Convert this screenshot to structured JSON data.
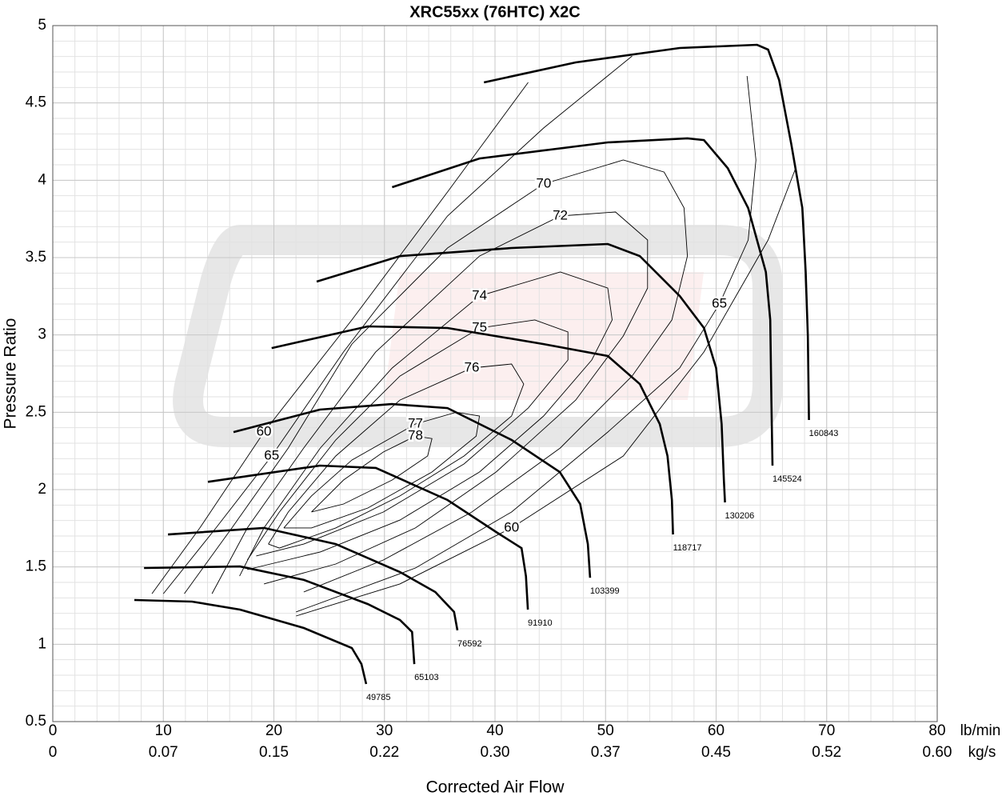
{
  "chart_data": {
    "type": "compressor-map",
    "title": "XRC55xx (76HTC) X2C",
    "x_label": "Corrected Air Flow",
    "y_label": "Pressure Ratio",
    "xunit": "lb/min",
    "x2unit": "kg/s",
    "xlim": [
      0,
      80
    ],
    "xticks": [
      0,
      10,
      20,
      30,
      40,
      50,
      60,
      70,
      80
    ],
    "x2lim": [
      0,
      0.6048
    ],
    "x2ticks": [
      0,
      {
        "value": 0.0756,
        "label": "0.07"
      },
      {
        "value": 0.1512,
        "label": "0.15"
      },
      {
        "value": 0.2268,
        "label": "0.22"
      },
      {
        "value": 0.3024,
        "label": "0.30"
      },
      {
        "value": 0.378,
        "label": "0.37"
      },
      {
        "value": 0.4536,
        "label": "0.45"
      },
      {
        "value": 0.5292,
        "label": "0.52"
      },
      {
        "value": 0.6048,
        "label": "0.60"
      }
    ],
    "ylim": [
      0.5,
      5
    ],
    "yticks": [
      0.5,
      1,
      1.5,
      2,
      2.5,
      3,
      3.5,
      4,
      4.5,
      5
    ],
    "grid": true,
    "minor_grid": true,
    "series": [
      {
        "name": "49785",
        "color": "#000000",
        "x": [
          7.38,
          12.59,
          16.93,
          22.71,
          27.05,
          27.92,
          28.35
        ],
        "values": [
          1.286,
          1.276,
          1.224,
          1.105,
          0.976,
          0.872,
          0.743
        ]
      },
      {
        "name": "65103",
        "color": "#000000",
        "x": [
          8.25,
          16.93,
          22.71,
          28.5,
          31.4,
          32.5,
          32.7
        ],
        "values": [
          1.493,
          1.503,
          1.416,
          1.26,
          1.157,
          1.08,
          0.872
        ]
      },
      {
        "name": "76592",
        "color": "#000000",
        "x": [
          10.42,
          19.1,
          25.6,
          31.4,
          34.6,
          36.3,
          36.6
        ],
        "values": [
          1.71,
          1.752,
          1.648,
          1.467,
          1.338,
          1.209,
          1.09
        ]
      },
      {
        "name": "91910",
        "color": "#000000",
        "x": [
          14.03,
          24.16,
          29.22,
          35.7,
          40.1,
          42.4,
          42.8,
          42.97
        ],
        "values": [
          2.05,
          2.155,
          2.14,
          1.933,
          1.726,
          1.622,
          1.44,
          1.224
        ]
      },
      {
        "name": "103399",
        "color": "#000000",
        "x": [
          16.35,
          24.16,
          30.67,
          35.7,
          41.5,
          45.86,
          47.7,
          48.4,
          48.6
        ],
        "values": [
          2.372,
          2.517,
          2.553,
          2.527,
          2.321,
          2.114,
          1.907,
          1.648,
          1.43
        ]
      },
      {
        "name": "118717",
        "color": "#000000",
        "x": [
          19.8,
          28.5,
          35.7,
          44.4,
          50.2,
          53.1,
          54.9,
          55.6,
          56.0,
          56.1
        ],
        "values": [
          2.915,
          3.055,
          3.045,
          2.941,
          2.864,
          2.683,
          2.424,
          2.217,
          1.933,
          1.71
        ]
      },
      {
        "name": "130206",
        "color": "#000000",
        "x": [
          23.87,
          31.4,
          41.5,
          50.2,
          53.1,
          56.7,
          58.9,
          60.0,
          60.5,
          60.7,
          60.8
        ],
        "values": [
          3.345,
          3.51,
          3.562,
          3.588,
          3.51,
          3.252,
          3.045,
          2.786,
          2.424,
          2.062,
          1.917
        ]
      },
      {
        "name": "145524",
        "color": "#000000",
        "x": [
          30.7,
          38.6,
          50.2,
          57.4,
          58.9,
          61.05,
          62.9,
          64.5,
          64.9,
          65.0,
          65.1
        ],
        "values": [
          3.955,
          4.141,
          4.245,
          4.271,
          4.26,
          4.079,
          3.82,
          3.407,
          3.097,
          2.579,
          2.155
        ]
      },
      {
        "name": "160843",
        "color": "#000000",
        "x": [
          39.0,
          47.3,
          56.7,
          63.7,
          64.7,
          65.7,
          66.8,
          67.8,
          68.1,
          68.3,
          68.4
        ],
        "values": [
          4.633,
          4.762,
          4.855,
          4.876,
          4.845,
          4.648,
          4.234,
          3.821,
          3.407,
          2.993,
          2.45
        ]
      }
    ],
    "contours": [
      {
        "name": "60",
        "x": [
          8.97,
          13.3,
          19.1,
          27.05,
          35.7,
          43.0,
          null,
          22.0,
          31.4,
          41.5,
          51.6,
          58.9,
          64.7,
          67.2
        ],
        "values": [
          1.327,
          1.752,
          2.372,
          3.097,
          3.924,
          4.633,
          null,
          1.183,
          1.39,
          1.752,
          2.217,
          2.89,
          3.614,
          4.079
        ]
      },
      {
        "name": "65",
        "x": [
          10.0,
          14.76,
          19.8,
          26.3,
          35.7,
          44.4,
          52.4,
          null,
          62.8,
          63.6,
          62.9,
          60.3,
          56.7,
          50.2,
          41.5,
          32.8,
          22.0
        ],
        "values": [
          1.327,
          1.752,
          2.217,
          2.89,
          3.769,
          4.338,
          4.803,
          null,
          4.674,
          4.131,
          3.614,
          3.2,
          2.786,
          2.372,
          1.855,
          1.493,
          1.209
        ]
      },
      {
        "name": "70",
        "x": [
          11.9,
          16.2,
          21.3,
          27.05,
          35.7,
          44.4,
          51.6,
          55.3,
          57.1,
          57.4,
          56.0,
          52.4,
          45.9,
          37.9,
          29.9,
          22.7
        ],
        "values": [
          1.327,
          1.752,
          2.269,
          2.941,
          3.562,
          3.976,
          4.131,
          4.053,
          3.821,
          3.51,
          3.097,
          2.734,
          2.269,
          1.855,
          1.545,
          1.338
        ]
      },
      {
        "name": "72",
        "x": [
          14.4,
          17.6,
          22.7,
          29.2,
          38.6,
          45.9,
          50.9,
          53.8,
          53.8,
          51.6,
          47.3,
          40.1,
          32.8,
          25.6,
          19.1
        ],
        "values": [
          1.327,
          1.752,
          2.269,
          2.889,
          3.51,
          3.769,
          3.795,
          3.614,
          3.303,
          2.993,
          2.579,
          2.114,
          1.752,
          1.519,
          1.39
        ]
      },
      {
        "name": "74",
        "x": [
          16.9,
          19.1,
          24.2,
          30.7,
          38.6,
          45.9,
          50.2,
          50.6,
          48.75,
          44.4,
          38.6,
          31.4,
          24.2,
          17.6
        ],
        "values": [
          1.441,
          1.752,
          2.269,
          2.786,
          3.252,
          3.407,
          3.303,
          3.097,
          2.838,
          2.476,
          2.114,
          1.803,
          1.597,
          1.483
        ]
      },
      {
        "name": "75",
        "x": [
          17.6,
          20.5,
          25.6,
          31.4,
          38.6,
          43.6,
          46.6,
          46.6,
          43.0,
          37.2,
          29.9,
          22.7,
          18.4
        ],
        "values": [
          1.545,
          1.855,
          2.321,
          2.734,
          3.045,
          3.097,
          3.019,
          2.838,
          2.527,
          2.166,
          1.855,
          1.648,
          1.571
        ]
      },
      {
        "name": "76",
        "x": [
          19.5,
          21.3,
          25.6,
          31.4,
          37.9,
          41.5,
          42.6,
          41.5,
          37.2,
          31.4,
          25.6,
          20.5,
          19.5
        ],
        "values": [
          1.648,
          1.855,
          2.217,
          2.579,
          2.786,
          2.812,
          2.683,
          2.476,
          2.217,
          1.959,
          1.752,
          1.622,
          1.648
        ]
      },
      {
        "name": "77",
        "x": [
          20.9,
          23.4,
          27.05,
          32.8,
          36.5,
          38.6,
          38.3,
          34.3,
          28.5,
          23.4,
          20.9
        ],
        "values": [
          1.752,
          1.959,
          2.191,
          2.424,
          2.5,
          2.476,
          2.346,
          2.114,
          1.881,
          1.752,
          1.752
        ]
      },
      {
        "name": "78",
        "x": [
          23.4,
          26.3,
          29.9,
          32.8,
          34.3,
          33.9,
          30.7,
          26.3,
          23.4
        ],
        "values": [
          1.855,
          2.062,
          2.243,
          2.346,
          2.33,
          2.217,
          2.062,
          1.907,
          1.855
        ]
      }
    ]
  }
}
